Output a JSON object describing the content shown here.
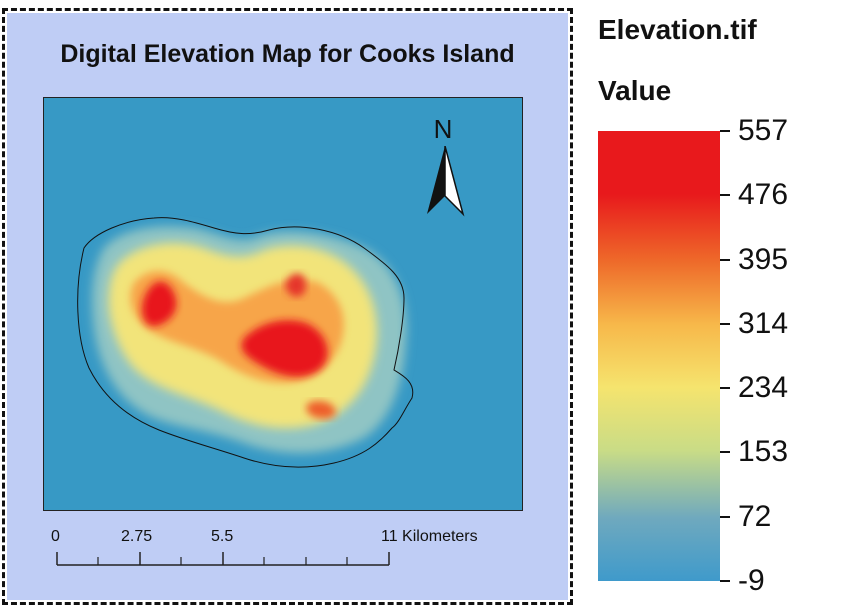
{
  "map": {
    "title": "Digital Elevation Map for Cooks Island",
    "north_arrow_label": "N",
    "ocean_color": "#3799c5",
    "panel_color": "#bfcdf5"
  },
  "scale_bar": {
    "labels": [
      "0",
      "2.75",
      "5.5",
      "11 Kilometers"
    ],
    "unit": "Kilometers"
  },
  "legend": {
    "title": "Elevation.tif",
    "subtitle": "Value",
    "labels": [
      "557",
      "476",
      "395",
      "314",
      "234",
      "153",
      "72",
      "-9"
    ],
    "min": -9,
    "max": 557,
    "color_ramp": [
      "#e8191c",
      "#e8191c",
      "#ee6a2a",
      "#f7b84a",
      "#f5e46e",
      "#c9dc86",
      "#6fa9be",
      "#3f9acb"
    ]
  }
}
